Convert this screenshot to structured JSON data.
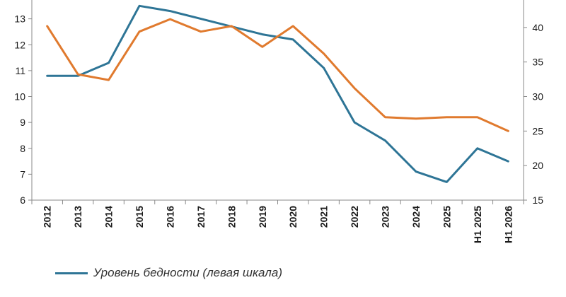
{
  "chart_data": {
    "type": "line",
    "categories": [
      "2012",
      "2013",
      "2014",
      "2015",
      "2016",
      "2017",
      "2018",
      "2019",
      "2020",
      "2021",
      "2022",
      "2023",
      "2024",
      "2025",
      "H1 2025",
      "H1 2026"
    ],
    "y_left": {
      "ylim": [
        6,
        14
      ],
      "ticks": [
        6,
        7,
        8,
        9,
        10,
        11,
        12,
        13
      ]
    },
    "y_right": {
      "ylim": [
        15,
        45
      ],
      "ticks": [
        15,
        20,
        25,
        30,
        35,
        40
      ]
    },
    "series": [
      {
        "name": "Уровень бедности (левая шкала)",
        "axis": "left",
        "color": "#2e7596",
        "values": [
          10.8,
          10.8,
          11.3,
          13.5,
          13.3,
          13.0,
          12.7,
          12.4,
          12.2,
          11.1,
          9.0,
          8.3,
          7.1,
          6.7,
          8.0,
          7.5
        ]
      },
      {
        "axis": "right",
        "color": "#e07a2e",
        "values": [
          40.2,
          33.2,
          32.4,
          39.4,
          41.2,
          39.4,
          40.2,
          37.2,
          40.2,
          36.2,
          31.2,
          27.0,
          26.8,
          27.0,
          27.0,
          25.0
        ]
      }
    ],
    "grid": false,
    "legend_position": "bottom-left"
  }
}
